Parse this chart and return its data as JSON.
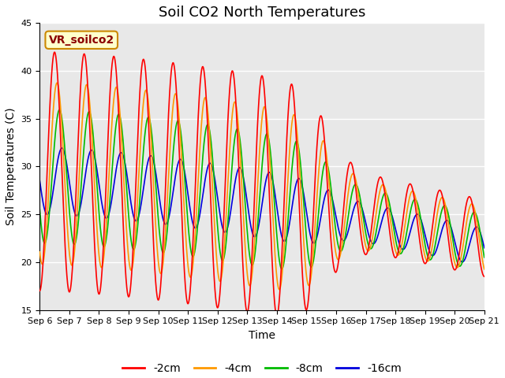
{
  "title": "Soil CO2 North Temperatures",
  "xlabel": "Time",
  "ylabel": "Soil Temperatures (C)",
  "annotation_text": "VR_soilco2",
  "ylim": [
    15,
    45
  ],
  "xtick_labels": [
    "Sep 6",
    "Sep 7",
    "Sep 8",
    "Sep 9",
    "Sep 10",
    "Sep 11",
    "Sep 12",
    "Sep 13",
    "Sep 14",
    "Sep 15",
    "Sep 16",
    "Sep 17",
    "Sep 18",
    "Sep 19",
    "Sep 20",
    "Sep 21"
  ],
  "legend_entries": [
    "-2cm",
    "-4cm",
    "-8cm",
    "-16cm"
  ],
  "line_colors": [
    "#ff0000",
    "#ff9900",
    "#00bb00",
    "#0000dd"
  ],
  "background_color": "#e8e8e8",
  "title_fontsize": 13,
  "axis_fontsize": 10,
  "tick_fontsize": 8,
  "legend_fontsize": 10,
  "annotation_fontsize": 10,
  "grid_color": "#ffffff",
  "n_points": 3000,
  "duration_days": 15
}
